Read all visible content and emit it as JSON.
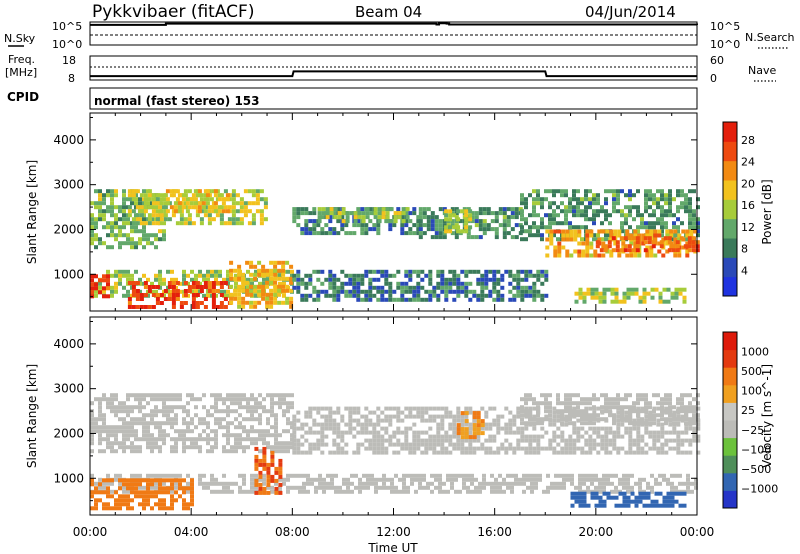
{
  "header": {
    "station": "Pykkvibaer (fitACF)",
    "beam": "Beam 04",
    "date": "04/Jun/2014"
  },
  "status_panels": {
    "nsky_label": "N.Sky",
    "nsky_ticks": [
      "10^5",
      "10^0"
    ],
    "nsearch_label": "N.Search",
    "nsearch_ticks": [
      "10^5",
      "10^0"
    ],
    "freq_label_line1": "Freq.",
    "freq_label_line2": "[MHz]",
    "freq_ticks": [
      "18",
      "8"
    ],
    "nave_label": "Nave",
    "nave_ticks": [
      "60",
      "0"
    ],
    "cpid_label": "CPID",
    "cpid_value": "normal (fast stereo) 153"
  },
  "colors": {
    "power_scale": [
      "#1f33e0",
      "#2a49b8",
      "#3a7a5a",
      "#62a86a",
      "#a7cc3a",
      "#f2c21e",
      "#f28a12",
      "#ee4a10",
      "#e41f0c"
    ],
    "velocity_scale": [
      "#2535c8",
      "#3266b2",
      "#4f8f5a",
      "#6cc23c",
      "#bcbcb8",
      "#c7c7c3",
      "#f0a020",
      "#f07a15",
      "#e43a10",
      "#de1a0a"
    ],
    "grid_grey": "#bdbdb8"
  },
  "chart_data": [
    {
      "type": "line",
      "title": "N.Sky / N.Search",
      "x": [
        0,
        2.9,
        3.0,
        13.7,
        13.8,
        14.1,
        14.2,
        24
      ],
      "values_log10": [
        4.8,
        4.8,
        5.1,
        4.9,
        5.2,
        5.1,
        4.9,
        4.8
      ]
    },
    {
      "type": "line",
      "title": "Freq. / Nave",
      "x": [
        0,
        2.4,
        3.0,
        8.0,
        8.05,
        18.0,
        18.05,
        24
      ],
      "freq_mhz": [
        9.6,
        9.6,
        9.6,
        9.6,
        11.6,
        11.6,
        9.6,
        9.6
      ],
      "nave_ylim": [
        0,
        60
      ],
      "freq_ylim": [
        8,
        18
      ]
    },
    {
      "type": "heatmap",
      "title": "",
      "xlabel": "Time UT",
      "ylabel": "Slant Range [km]",
      "x_ticks": [
        "00:00",
        "04:00",
        "08:00",
        "12:00",
        "16:00",
        "20:00",
        "00:00"
      ],
      "x_range_hours": [
        0,
        24
      ],
      "y_ticks": [
        1000,
        2000,
        3000,
        4000
      ],
      "ylim": [
        180,
        4600
      ],
      "colorbar_label": "Power [dB]",
      "colorbar_ticks": [
        "4",
        "8",
        "12",
        "16",
        "20",
        "24",
        "28"
      ],
      "crange": [
        0,
        30
      ],
      "regions": [
        {
          "t0": 0.0,
          "t1": 3.0,
          "r0": 1600,
          "r1": 2900,
          "level": 13
        },
        {
          "t0": 1.5,
          "t1": 7.0,
          "r0": 2100,
          "r1": 2900,
          "level": 16
        },
        {
          "t0": 3.0,
          "t1": 5.5,
          "r0": 2400,
          "r1": 2900,
          "level": 18
        },
        {
          "t0": 0.0,
          "t1": 8.0,
          "r0": 500,
          "r1": 1100,
          "level": 15
        },
        {
          "t0": 1.5,
          "t1": 5.5,
          "r0": 280,
          "r1": 850,
          "level": 26
        },
        {
          "t0": 0.0,
          "t1": 0.7,
          "r0": 500,
          "r1": 1000,
          "level": 27
        },
        {
          "t0": 5.5,
          "t1": 8.0,
          "r0": 300,
          "r1": 1300,
          "level": 19
        },
        {
          "t0": 8.0,
          "t1": 13.0,
          "r0": 1900,
          "r1": 2500,
          "level": 9
        },
        {
          "t0": 9.0,
          "t1": 12.5,
          "r0": 2200,
          "r1": 2500,
          "level": 14
        },
        {
          "t0": 13.0,
          "t1": 17.0,
          "r0": 1800,
          "r1": 2500,
          "level": 10
        },
        {
          "t0": 14.0,
          "t1": 15.0,
          "r0": 2000,
          "r1": 2450,
          "level": 16
        },
        {
          "t0": 8.0,
          "t1": 18.0,
          "r0": 400,
          "r1": 1100,
          "level": 8
        },
        {
          "t0": 17.0,
          "t1": 24.0,
          "r0": 1800,
          "r1": 2900,
          "level": 10
        },
        {
          "t0": 18.0,
          "t1": 24.0,
          "r0": 1400,
          "r1": 2000,
          "level": 20
        },
        {
          "t0": 20.0,
          "t1": 24.0,
          "r0": 1500,
          "r1": 1850,
          "level": 24
        },
        {
          "t0": 19.0,
          "t1": 23.5,
          "r0": 350,
          "r1": 700,
          "level": 15
        }
      ]
    },
    {
      "type": "heatmap",
      "title": "",
      "xlabel": "Time UT",
      "ylabel": "Slant Range [km]",
      "x_ticks": [
        "00:00",
        "04:00",
        "08:00",
        "12:00",
        "16:00",
        "20:00",
        "00:00"
      ],
      "x_range_hours": [
        0,
        24
      ],
      "y_ticks": [
        1000,
        2000,
        3000,
        4000
      ],
      "ylim": [
        180,
        4600
      ],
      "colorbar_label": "Velocity [m s^-1]",
      "colorbar_ticks": [
        "1000",
        "500",
        "100",
        "25",
        "−25",
        "−100",
        "−500",
        "−1000"
      ],
      "regions": [
        {
          "t0": 0.0,
          "t1": 8.0,
          "r0": 1600,
          "r1": 2900,
          "level": 0
        },
        {
          "t0": 0.0,
          "t1": 24.0,
          "r0": 700,
          "r1": 1100,
          "level": 0
        },
        {
          "t0": 0.0,
          "t1": 4.0,
          "r0": 300,
          "r1": 1000,
          "level": -150
        },
        {
          "t0": 6.5,
          "t1": 7.5,
          "r0": 700,
          "r1": 1700,
          "level": -300
        },
        {
          "t0": 8.0,
          "t1": 24.0,
          "r0": 1600,
          "r1": 2600,
          "level": 0
        },
        {
          "t0": 14.5,
          "t1": 15.5,
          "r0": 1900,
          "r1": 2500,
          "level": -100
        },
        {
          "t0": 17.0,
          "t1": 24.0,
          "r0": 2200,
          "r1": 2900,
          "level": 0
        },
        {
          "t0": 19.0,
          "t1": 23.5,
          "r0": 350,
          "r1": 700,
          "level": 150
        }
      ]
    }
  ]
}
